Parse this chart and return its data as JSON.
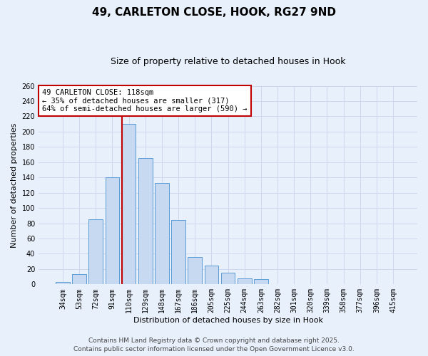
{
  "title": "49, CARLETON CLOSE, HOOK, RG27 9ND",
  "subtitle": "Size of property relative to detached houses in Hook",
  "xlabel": "Distribution of detached houses by size in Hook",
  "ylabel": "Number of detached properties",
  "bar_labels": [
    "34sqm",
    "53sqm",
    "72sqm",
    "91sqm",
    "110sqm",
    "129sqm",
    "148sqm",
    "167sqm",
    "186sqm",
    "205sqm",
    "225sqm",
    "244sqm",
    "263sqm",
    "282sqm",
    "301sqm",
    "320sqm",
    "339sqm",
    "358sqm",
    "377sqm",
    "396sqm",
    "415sqm"
  ],
  "bar_values": [
    3,
    13,
    85,
    140,
    210,
    165,
    133,
    84,
    36,
    25,
    15,
    8,
    7,
    0,
    0,
    0,
    0,
    0,
    0,
    0,
    0
  ],
  "bar_color": "#c6d9f1",
  "bar_edge_color": "#5b9bd5",
  "vline_index": 4,
  "vline_color": "#c00000",
  "annotation_text": "49 CARLETON CLOSE: 118sqm\n← 35% of detached houses are smaller (317)\n64% of semi-detached houses are larger (590) →",
  "annotation_box_color": "#ffffff",
  "annotation_box_edge_color": "#c00000",
  "ylim": [
    0,
    260
  ],
  "yticks": [
    0,
    20,
    40,
    60,
    80,
    100,
    120,
    140,
    160,
    180,
    200,
    220,
    240,
    260
  ],
  "grid_color": "#cdd8ee",
  "background_color": "#e8f0fb",
  "footer_line1": "Contains HM Land Registry data © Crown copyright and database right 2025.",
  "footer_line2": "Contains public sector information licensed under the Open Government Licence v3.0.",
  "title_fontsize": 11,
  "subtitle_fontsize": 9,
  "axis_label_fontsize": 8,
  "tick_fontsize": 7,
  "annotation_fontsize": 7.5,
  "footer_fontsize": 6.5
}
